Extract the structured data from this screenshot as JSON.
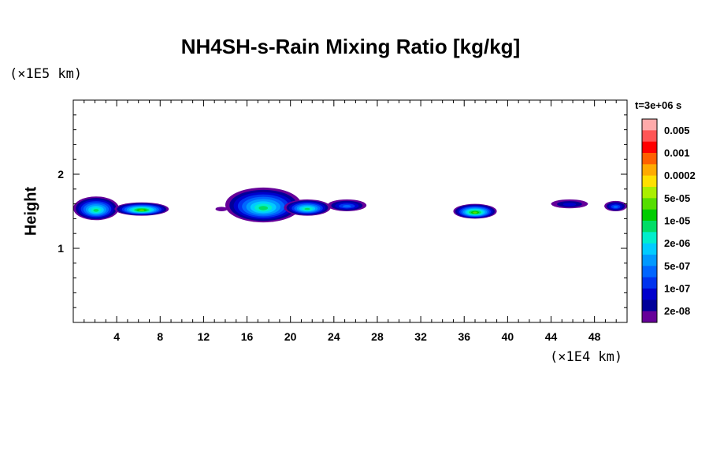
{
  "chart_data": {
    "type": "heatmap",
    "title": "NH4SH-s-Rain Mixing Ratio [kg/kg]",
    "ylabel": "Height",
    "y_unit": "(×1E5 km)",
    "x_unit": "(×1E4 km)",
    "time_label": "t=3e+06 s",
    "xlim": [
      0,
      51
    ],
    "ylim": [
      0,
      3
    ],
    "x_ticks": [
      "4",
      "8",
      "12",
      "16",
      "20",
      "24",
      "28",
      "32",
      "36",
      "40",
      "44",
      "48"
    ],
    "x_tick_values": [
      4,
      8,
      12,
      16,
      20,
      24,
      28,
      32,
      36,
      40,
      44,
      48
    ],
    "y_ticks": [
      "1",
      "2"
    ],
    "y_tick_values": [
      1,
      2
    ],
    "colorbar": {
      "labels": [
        "0.005",
        "0.001",
        "0.0002",
        "5e-05",
        "1e-05",
        "2e-06",
        "5e-07",
        "1e-07",
        "2e-08"
      ],
      "colors": [
        "#ffaaaa",
        "#ff5555",
        "#ff0000",
        "#ff6000",
        "#ffaa00",
        "#ffe000",
        "#aaee00",
        "#55dd00",
        "#00cc00",
        "#00dd66",
        "#00eecc",
        "#00ccff",
        "#0099ff",
        "#0066ff",
        "#0033ee",
        "#0000cc",
        "#000099",
        "#660099"
      ]
    },
    "clouds": [
      {
        "x_range": [
          0,
          4.2
        ],
        "y_range": [
          1.38,
          1.7
        ],
        "peak": "1e-05"
      },
      {
        "x_range": [
          3.8,
          8.8
        ],
        "y_range": [
          1.44,
          1.62
        ],
        "peak": "5e-05"
      },
      {
        "x_range": [
          13.1,
          14.2
        ],
        "y_range": [
          1.5,
          1.56
        ],
        "peak": "2e-08"
      },
      {
        "x_range": [
          14,
          21
        ],
        "y_range": [
          1.35,
          1.82
        ],
        "peak": "1e-05"
      },
      {
        "x_range": [
          19.4,
          23.7
        ],
        "y_range": [
          1.44,
          1.66
        ],
        "peak": "1e-05"
      },
      {
        "x_range": [
          23.4,
          27
        ],
        "y_range": [
          1.5,
          1.66
        ],
        "peak": "5e-07"
      },
      {
        "x_range": [
          35,
          39
        ],
        "y_range": [
          1.4,
          1.6
        ],
        "peak": "5e-05"
      },
      {
        "x_range": [
          44,
          47.4
        ],
        "y_range": [
          1.54,
          1.66
        ],
        "peak": "1e-07"
      },
      {
        "x_range": [
          48.9,
          51
        ],
        "y_range": [
          1.5,
          1.64
        ],
        "peak": "5e-07"
      }
    ]
  }
}
